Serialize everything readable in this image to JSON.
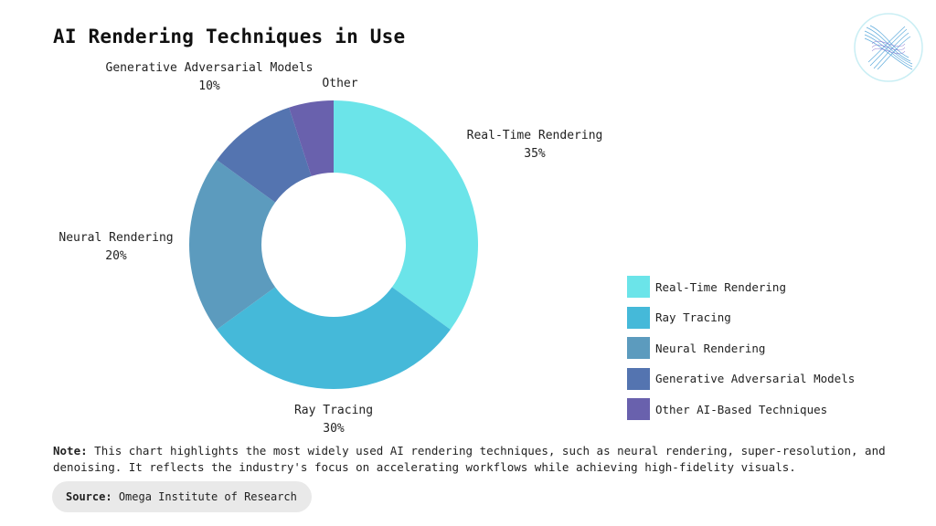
{
  "title": "AI Rendering Techniques in Use",
  "note": {
    "label": "Note:",
    "text": "This chart highlights the most widely used AI rendering techniques, such as neural rendering, super-resolution, and denoising. It reflects the industry's focus on accelerating workflows while achieving high-fidelity visuals."
  },
  "source": {
    "label": "Source:",
    "text": "Omega Institute of Research"
  },
  "colors": {
    "real_time": "#6be4e9",
    "ray_tracing": "#45b9d9",
    "neural": "#5c9bbe",
    "gan": "#5474b0",
    "other": "#6961ad"
  },
  "chart_data": {
    "type": "pie",
    "style": "donut",
    "slices": [
      {
        "label": "Real-Time Rendering",
        "value": 35,
        "value_label": "35%",
        "legend": "Real-Time Rendering",
        "color": "#6be4e9"
      },
      {
        "label": "Ray Tracing",
        "value": 30,
        "value_label": "30%",
        "legend": "Ray Tracing",
        "color": "#45b9d9"
      },
      {
        "label": "Neural Rendering",
        "value": 20,
        "value_label": "20%",
        "legend": "Neural Rendering",
        "color": "#5c9bbe"
      },
      {
        "label": "Generative Adversarial Models",
        "value": 10,
        "value_label": "10%",
        "legend": "Generative Adversarial Models",
        "color": "#5474b0"
      },
      {
        "label": "Other",
        "value": 5,
        "value_label": "",
        "legend": "Other AI-Based Techniques",
        "color": "#6961ad"
      }
    ],
    "legend_position": "bottom-right"
  }
}
